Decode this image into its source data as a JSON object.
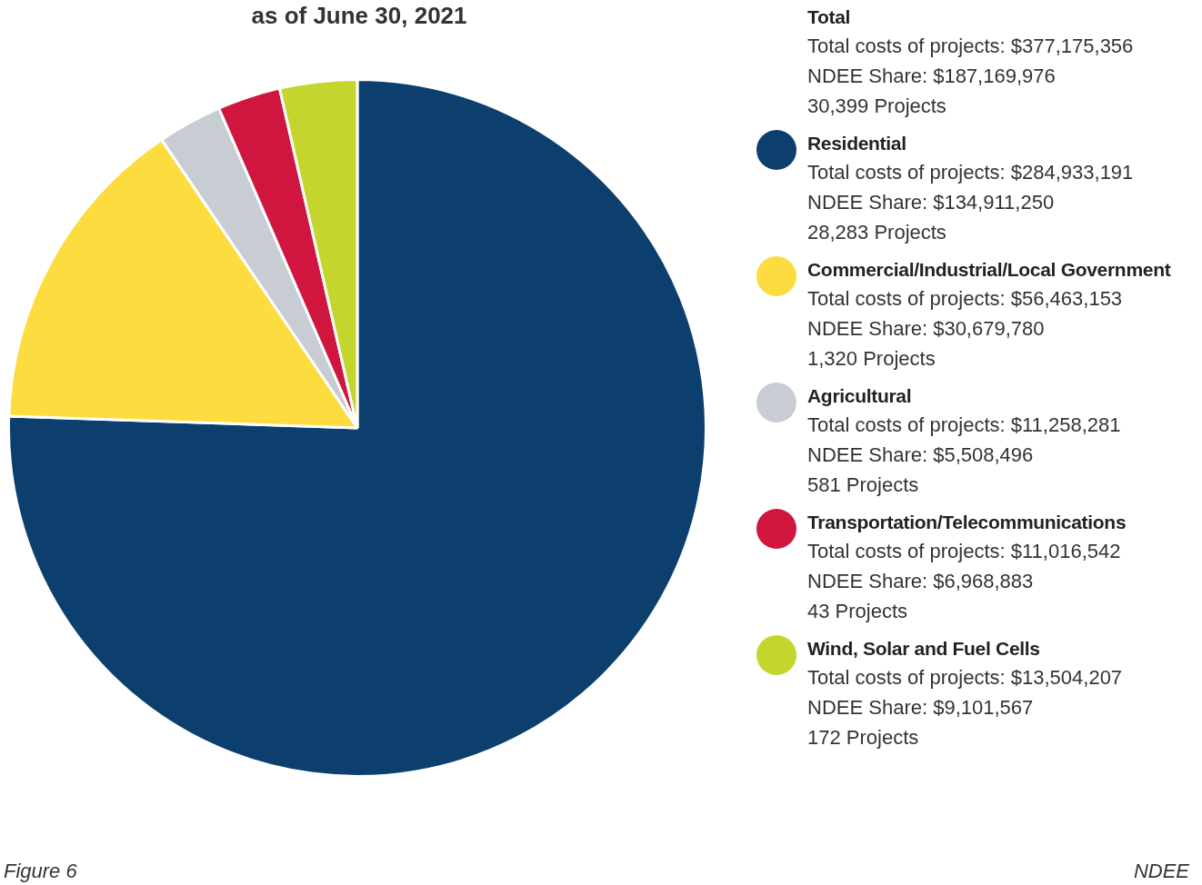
{
  "chart_data": {
    "type": "pie",
    "title": "as of June 30, 2021",
    "categories": [
      "Residential",
      "Commercial/Industrial/Local Government",
      "Agricultural",
      "Transportation/Telecommunications",
      "Wind, Solar and Fuel Cells"
    ],
    "values": [
      75.54,
      14.97,
      2.99,
      2.92,
      3.58
    ],
    "colors": [
      "#0d3f6e",
      "#fddc3f",
      "#c8ccd3",
      "#d0163f",
      "#c4d62e"
    ],
    "legend": "right",
    "annotations": [
      "Total",
      "Total costs of projects: $377,175,356",
      "NDEE Share: $187,169,976",
      "30,399 Projects",
      "Total costs of projects: $284,933,191",
      "NDEE Share: $134,911,250",
      "28,283 Projects",
      "Total costs of projects: $56,463,153",
      "NDEE Share: $30,679,780",
      "1,320 Projects",
      "Total costs of projects: $11,258,281",
      "NDEE Share: $5,508,496",
      "581 Projects",
      "Total costs of projects: $11,016,542",
      "NDEE Share: $6,968,883",
      "43 Projects",
      "Total costs of projects: $13,504,207",
      "NDEE Share: $9,101,567",
      "172 Projects",
      "Figure 6",
      "NDEE"
    ]
  }
}
